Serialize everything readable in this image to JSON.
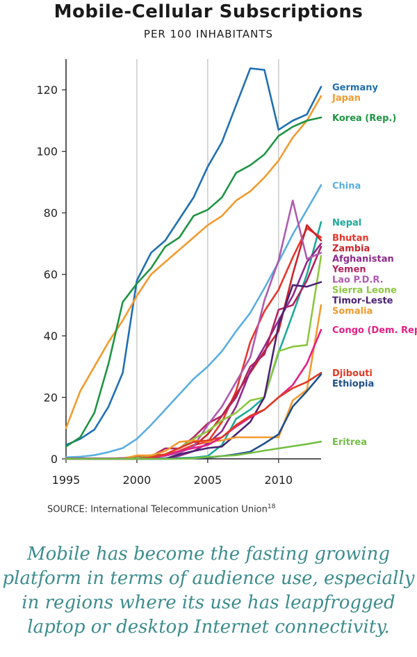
{
  "title": "Mobile-Cellular Subscriptions",
  "subtitle": "PER 100 INHABITANTS",
  "source": {
    "label": "SOURCE:",
    "text": "International Telecommunication Union",
    "footnote": "18"
  },
  "caption": "Mobile has become the fasting growing platform in terms of audience use, especially in regions where its use has leapfrogged laptop or desktop Internet connectivity.",
  "chart_data": {
    "type": "line",
    "title": "Mobile-Cellular Subscriptions",
    "subtitle": "PER 100 INHABITANTS",
    "xlabel": "",
    "ylabel": "",
    "xlim": [
      1995,
      2013
    ],
    "ylim": [
      0,
      130
    ],
    "x_ticks": [
      1995,
      2000,
      2005,
      2010
    ],
    "y_ticks": [
      0,
      20,
      40,
      60,
      80,
      100,
      120
    ],
    "grid": "vertical",
    "legend": "right",
    "x": [
      1995,
      1996,
      1997,
      1998,
      1999,
      2000,
      2001,
      2002,
      2003,
      2004,
      2005,
      2006,
      2007,
      2008,
      2009,
      2010,
      2011,
      2012,
      2013
    ],
    "series": [
      {
        "name": "Germany",
        "color": "#1f6fb2",
        "values": [
          4.5,
          6.5,
          9.5,
          17,
          28,
          58,
          67,
          71,
          78,
          85,
          95,
          103,
          115,
          127,
          126.5,
          107,
          110,
          112,
          121
        ]
      },
      {
        "name": "Japan",
        "color": "#f39a2e",
        "values": [
          10,
          22,
          30,
          38,
          45,
          53,
          60,
          64,
          68,
          72,
          76,
          79,
          84,
          87,
          91.5,
          97,
          104.5,
          110,
          118
        ]
      },
      {
        "name": "Korea (Rep.)",
        "color": "#1e9443",
        "values": [
          4,
          7,
          15,
          31,
          51,
          57,
          62,
          69,
          72,
          79,
          81,
          85,
          93,
          95.5,
          99,
          105,
          108,
          110,
          111
        ]
      },
      {
        "name": "China",
        "color": "#5aaee0",
        "values": [
          0.5,
          0.7,
          1.2,
          2.2,
          3.5,
          6.5,
          11,
          16,
          21,
          26,
          30,
          35,
          41.5,
          47.5,
          55.5,
          64,
          73,
          81,
          89
        ]
      },
      {
        "name": "Nepal",
        "color": "#1ba99a",
        "values": [
          0,
          0,
          0,
          0,
          0.1,
          0.1,
          0.1,
          0.2,
          0.2,
          0.4,
          0.9,
          4.5,
          13,
          16,
          20,
          34.5,
          47,
          60,
          77
        ]
      },
      {
        "name": "Bhutan",
        "color": "#e8352b",
        "values": [
          0,
          0,
          0,
          0,
          0,
          0,
          0.4,
          1.1,
          2.6,
          4.5,
          5.5,
          12,
          22,
          38,
          48,
          55,
          65.5,
          75,
          72
        ]
      },
      {
        "name": "Zambia",
        "color": "#c8252b",
        "values": [
          0.1,
          0.1,
          0.1,
          0.1,
          0.2,
          0.9,
          1.1,
          1.4,
          2,
          4,
          8,
          14,
          21,
          28,
          35,
          41.5,
          60,
          76,
          71
        ]
      },
      {
        "name": "Afghanistan",
        "color": "#8e2a8c",
        "values": [
          0,
          0,
          0,
          0,
          0,
          0,
          0,
          0.1,
          1,
          2.5,
          5,
          9,
          17,
          28.5,
          36.5,
          45,
          53,
          64,
          70
        ]
      },
      {
        "name": "Yemen",
        "color": "#b0235f",
        "values": [
          0.1,
          0.1,
          0.1,
          0.1,
          0.2,
          0.2,
          0.8,
          3.4,
          3.4,
          7,
          11.5,
          14,
          20,
          30,
          34,
          48.5,
          50,
          58,
          69
        ]
      },
      {
        "name": "Lao P.D.R.",
        "color": "#b05ab0",
        "values": [
          0.1,
          0.1,
          0.1,
          0.1,
          0.2,
          0.2,
          0.5,
          1,
          2,
          4,
          11,
          17,
          25,
          33,
          51.5,
          64.5,
          84,
          65,
          67
        ]
      },
      {
        "name": "Sierra Leone",
        "color": "#8cc63e",
        "values": [
          0,
          0,
          0,
          0,
          0,
          0.3,
          0.6,
          1.5,
          3.5,
          6.5,
          9,
          12.5,
          15,
          19,
          20,
          35,
          36.5,
          37,
          66
        ]
      },
      {
        "name": "Timor-Leste",
        "color": "#4a2273",
        "values": [
          0,
          0,
          0,
          0,
          0,
          0,
          0,
          0,
          1.5,
          2.5,
          3.5,
          4,
          8,
          12,
          20,
          43.5,
          56.5,
          56,
          57.5
        ]
      },
      {
        "name": "Somalia",
        "color": "#f39a2e",
        "values": [
          0,
          0,
          0,
          0,
          0,
          1.1,
          1.1,
          2.5,
          5.5,
          6,
          5.5,
          6,
          7,
          7,
          7,
          7,
          19,
          22.5,
          50
        ]
      },
      {
        "name": "Congo (Dem. Rep.)",
        "color": "#e51f85",
        "values": [
          0,
          0,
          0,
          0,
          0,
          0,
          0.3,
          1.1,
          2.5,
          3.5,
          4.5,
          7,
          10.5,
          13.5,
          16,
          20,
          24,
          31,
          42
        ]
      },
      {
        "name": "Djibouti",
        "color": "#e03a23",
        "values": [
          0,
          0,
          0,
          0,
          0,
          0,
          0.5,
          1.5,
          3.5,
          5.5,
          6,
          7,
          11,
          14,
          16,
          20,
          23,
          25,
          28
        ]
      },
      {
        "name": "Ethiopia",
        "color": "#1e4f8c",
        "values": [
          0,
          0,
          0,
          0,
          0,
          0,
          0,
          0,
          0.1,
          0.2,
          0.4,
          0.9,
          1.5,
          2.3,
          5,
          8,
          17,
          22,
          27.5
        ]
      },
      {
        "name": "Eritrea",
        "color": "#74be44",
        "values": [
          0,
          0,
          0,
          0,
          0,
          0,
          0,
          0,
          0,
          0.2,
          0.6,
          0.9,
          1.2,
          1.9,
          2.7,
          3.4,
          4.1,
          4.8,
          5.6
        ]
      }
    ]
  }
}
